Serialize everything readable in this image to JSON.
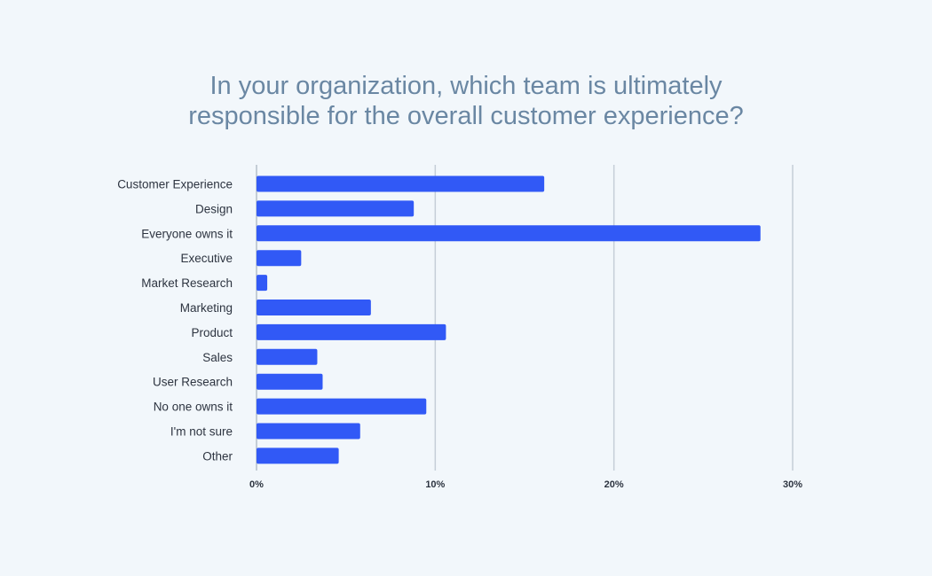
{
  "chart_data": {
    "type": "bar",
    "orientation": "horizontal",
    "title_lines": [
      "In your organization, which team is ultimately",
      "responsible for the overall customer experience?"
    ],
    "categories": [
      "Customer Experience",
      "Design",
      "Everyone owns it",
      "Executive",
      "Market Research",
      "Marketing",
      "Product",
      "Sales",
      "User Research",
      "No one owns it",
      "I'm not sure",
      "Other"
    ],
    "values": [
      16.1,
      8.8,
      28.2,
      2.5,
      0.6,
      6.4,
      10.6,
      3.4,
      3.7,
      9.5,
      5.8,
      4.6
    ],
    "xlim": [
      0,
      30
    ],
    "xticks": [
      0,
      10,
      20,
      30
    ],
    "xtick_labels": [
      "0%",
      "10%",
      "20%",
      "30%"
    ],
    "grid": true,
    "legend": "none",
    "colors": {
      "bar": "#3159f6",
      "grid": "#c5ced8",
      "axis": "#b5bfca",
      "title": "#6a87a3",
      "label": "#2d3440",
      "background": "#f2f7fb"
    }
  }
}
